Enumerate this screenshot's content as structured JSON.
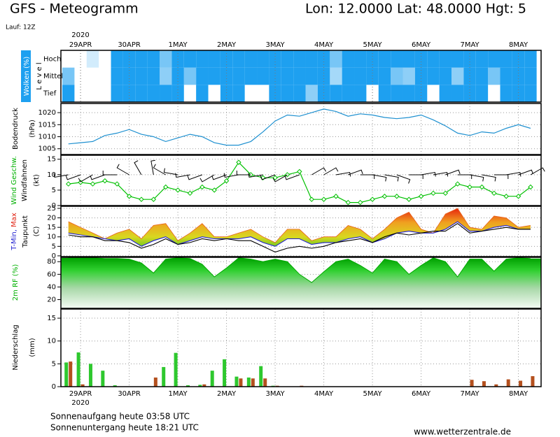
{
  "header": {
    "title": "GFS - Meteogramm",
    "location": "Lon: 12.0000 Lat: 48.0000 Hgt: 5",
    "run": "Lauf: 12Z"
  },
  "time_axis": {
    "year": "2020",
    "x": [
      -6,
      0,
      6,
      12,
      18,
      24,
      30,
      36,
      42,
      48,
      54,
      60,
      66,
      72,
      78,
      84,
      90,
      96,
      102,
      108,
      114,
      120,
      126,
      132,
      138,
      144,
      150,
      156,
      162,
      168,
      174,
      180,
      186,
      192,
      198,
      204,
      210,
      216,
      222
    ],
    "xlim": [
      -9.7,
      227.2
    ],
    "xticks": [
      {
        "value": 0,
        "label": "29APR"
      },
      {
        "value": 24,
        "label": "30APR"
      },
      {
        "value": 48,
        "label": "1MAY"
      },
      {
        "value": 72,
        "label": "2MAY"
      },
      {
        "value": 96,
        "label": "3MAY"
      },
      {
        "value": 120,
        "label": "4MAY"
      },
      {
        "value": 144,
        "label": "5MAY"
      },
      {
        "value": 168,
        "label": "6MAY"
      },
      {
        "value": 192,
        "label": "7MAY"
      },
      {
        "value": 216,
        "label": "8MAY"
      }
    ]
  },
  "chart_data": [
    {
      "type": "heatmap",
      "label": "Wolken (%)",
      "axis_label": "L e v e l",
      "color": "#1ea0f0",
      "rows": [
        {
          "name": "Hoch",
          "values": [
            0,
            0,
            20,
            0,
            100,
            100,
            100,
            100,
            60,
            100,
            100,
            100,
            100,
            100,
            100,
            100,
            100,
            100,
            100,
            100,
            100,
            100,
            60,
            100,
            100,
            100,
            100,
            100,
            100,
            100,
            100,
            100,
            100,
            100,
            100,
            100,
            100,
            100,
            100
          ]
        },
        {
          "name": "Mittel",
          "values": [
            60,
            0,
            0,
            0,
            100,
            100,
            100,
            100,
            50,
            100,
            60,
            100,
            100,
            100,
            100,
            100,
            100,
            100,
            100,
            100,
            100,
            100,
            40,
            100,
            100,
            100,
            100,
            60,
            50,
            100,
            100,
            100,
            50,
            100,
            100,
            60,
            100,
            100,
            100
          ]
        },
        {
          "name": "Tief",
          "values": [
            100,
            0,
            0,
            0,
            100,
            100,
            100,
            100,
            100,
            100,
            0,
            100,
            0,
            100,
            100,
            0,
            0,
            100,
            100,
            100,
            50,
            100,
            100,
            100,
            100,
            0,
            100,
            100,
            100,
            100,
            0,
            100,
            100,
            100,
            100,
            0,
            100,
            100,
            100
          ]
        }
      ]
    },
    {
      "type": "line",
      "label": "Bodendruck",
      "unit": "(hPa)",
      "color": "#1e90d0",
      "values": [
        1007,
        1007.5,
        1008,
        1010.5,
        1011.5,
        1013,
        1011,
        1010,
        1008,
        1009.5,
        1011,
        1010,
        1007.5,
        1006.5,
        1006.5,
        1008,
        1012,
        1016.5,
        1019,
        1018.5,
        1020,
        1021.5,
        1020.5,
        1018.5,
        1019.5,
        1019,
        1018,
        1017.5,
        1018,
        1019,
        1017,
        1014.5,
        1011.5,
        1010.5,
        1012,
        1011.5,
        1013.5,
        1015,
        1013.5
      ],
      "ylim": [
        1002.6,
        1023.8
      ],
      "yticks": [
        1005,
        1010,
        1015,
        1020
      ],
      "grid": true
    },
    {
      "type": "wind",
      "label": "Wind Geschw.",
      "label2": "Windfahnen",
      "unit": "(kt)",
      "color": "#00c000",
      "barb_color": "#000000",
      "values": [
        7,
        7.5,
        7,
        8,
        7,
        3,
        2,
        2,
        6,
        5,
        4,
        6,
        5,
        8,
        14,
        10,
        9,
        9,
        10,
        11,
        2,
        2,
        3,
        1,
        1,
        2,
        3,
        3,
        2,
        3,
        4,
        4,
        7,
        6,
        6,
        4,
        3,
        3,
        6
      ],
      "directions": [
        260,
        250,
        240,
        250,
        270,
        300,
        330,
        350,
        300,
        280,
        260,
        250,
        240,
        250,
        260,
        270,
        260,
        250,
        240,
        250,
        60,
        60,
        80,
        70,
        90,
        100,
        100,
        110,
        90,
        80,
        80,
        70,
        90,
        100,
        100,
        90,
        80,
        70,
        60
      ],
      "ylim": [
        0,
        16.3
      ],
      "yticks": [
        0,
        5,
        10,
        15
      ],
      "grid": true
    },
    {
      "type": "band",
      "label_min": "T-Min,",
      "label_max": "Max",
      "label2": "Taupunkt",
      "unit": "(C)",
      "series": [
        {
          "color": "#e8601c",
          "values": [
            18,
            15,
            12,
            9,
            12,
            14,
            9,
            16,
            17,
            8,
            12,
            17,
            10,
            10,
            12,
            14,
            10,
            7,
            14,
            14,
            8,
            10,
            10,
            16,
            14,
            9,
            14,
            20,
            23,
            14,
            12,
            22,
            25,
            15,
            14,
            21,
            20,
            15,
            16
          ]
        },
        {
          "color": "#2020d0",
          "values": [
            12,
            11,
            10,
            9,
            8,
            9,
            5,
            8,
            10,
            6,
            8,
            10,
            9,
            9,
            9,
            10,
            7,
            5,
            9,
            9,
            6,
            7,
            7,
            9,
            10,
            7,
            9,
            12,
            13,
            12,
            12,
            14,
            18,
            13,
            13,
            15,
            16,
            14,
            14
          ]
        },
        {
          "color": "#000000",
          "values": [
            11,
            10,
            10,
            8,
            8,
            7,
            4,
            6,
            9,
            6,
            7,
            9,
            8,
            9,
            8,
            8,
            5,
            2,
            4,
            5,
            4,
            5,
            7,
            8,
            9,
            7,
            10,
            12,
            11,
            12,
            13,
            13,
            17,
            12,
            13,
            14,
            15,
            14,
            14
          ]
        }
      ],
      "ylim": [
        -0.4,
        26.1
      ],
      "yticks": [
        0,
        5,
        10,
        15,
        20,
        25
      ],
      "grid": true
    },
    {
      "type": "area",
      "label": "2m RF (%)",
      "color": "#00a800",
      "values": [
        86,
        86,
        86,
        85,
        85,
        84,
        78,
        62,
        84,
        86,
        85,
        76,
        56,
        70,
        86,
        84,
        80,
        84,
        80,
        60,
        47,
        64,
        80,
        84,
        74,
        62,
        84,
        80,
        60,
        74,
        86,
        80,
        56,
        84,
        84,
        65,
        84,
        86,
        85
      ],
      "ylim": [
        6.2,
        86.9
      ],
      "yticks": [
        20,
        40,
        60,
        80
      ],
      "grid": true
    },
    {
      "type": "bar",
      "label": "Niederschlag",
      "unit": "(mm)",
      "series": [
        {
          "color": "#2ec82e",
          "values": [
            5.3,
            7.5,
            5,
            3.5,
            0.3,
            0,
            0,
            0,
            4.3,
            7.4,
            0.3,
            0.4,
            3.5,
            6,
            2.2,
            2,
            4.5,
            0.2,
            0,
            0,
            0,
            0,
            0,
            0,
            0,
            0,
            0,
            0,
            0,
            0,
            0,
            0,
            0,
            0,
            0,
            0,
            0,
            0,
            0
          ]
        },
        {
          "color": "#b4501e",
          "values": [
            5.5,
            0.5,
            0,
            0,
            0,
            0,
            0,
            2,
            0,
            0,
            0,
            0.5,
            0,
            0,
            1.8,
            1.8,
            1.8,
            0.2,
            0,
            0.2,
            0,
            0,
            0,
            0,
            0,
            0,
            0,
            0,
            0,
            0,
            0,
            0,
            0,
            1.5,
            1.2,
            0.5,
            1.6,
            1.3,
            2.3
          ]
        }
      ],
      "ylim": [
        0,
        17
      ],
      "yticks": [
        0,
        5,
        10,
        15
      ],
      "grid": true
    }
  ],
  "footer": {
    "sunrise": "Sonnenaufgang heute 03:58 UTC",
    "sunset": "Sonnenuntergang heute 18:21 UTC",
    "site": "www.wetterzentrale.de"
  }
}
